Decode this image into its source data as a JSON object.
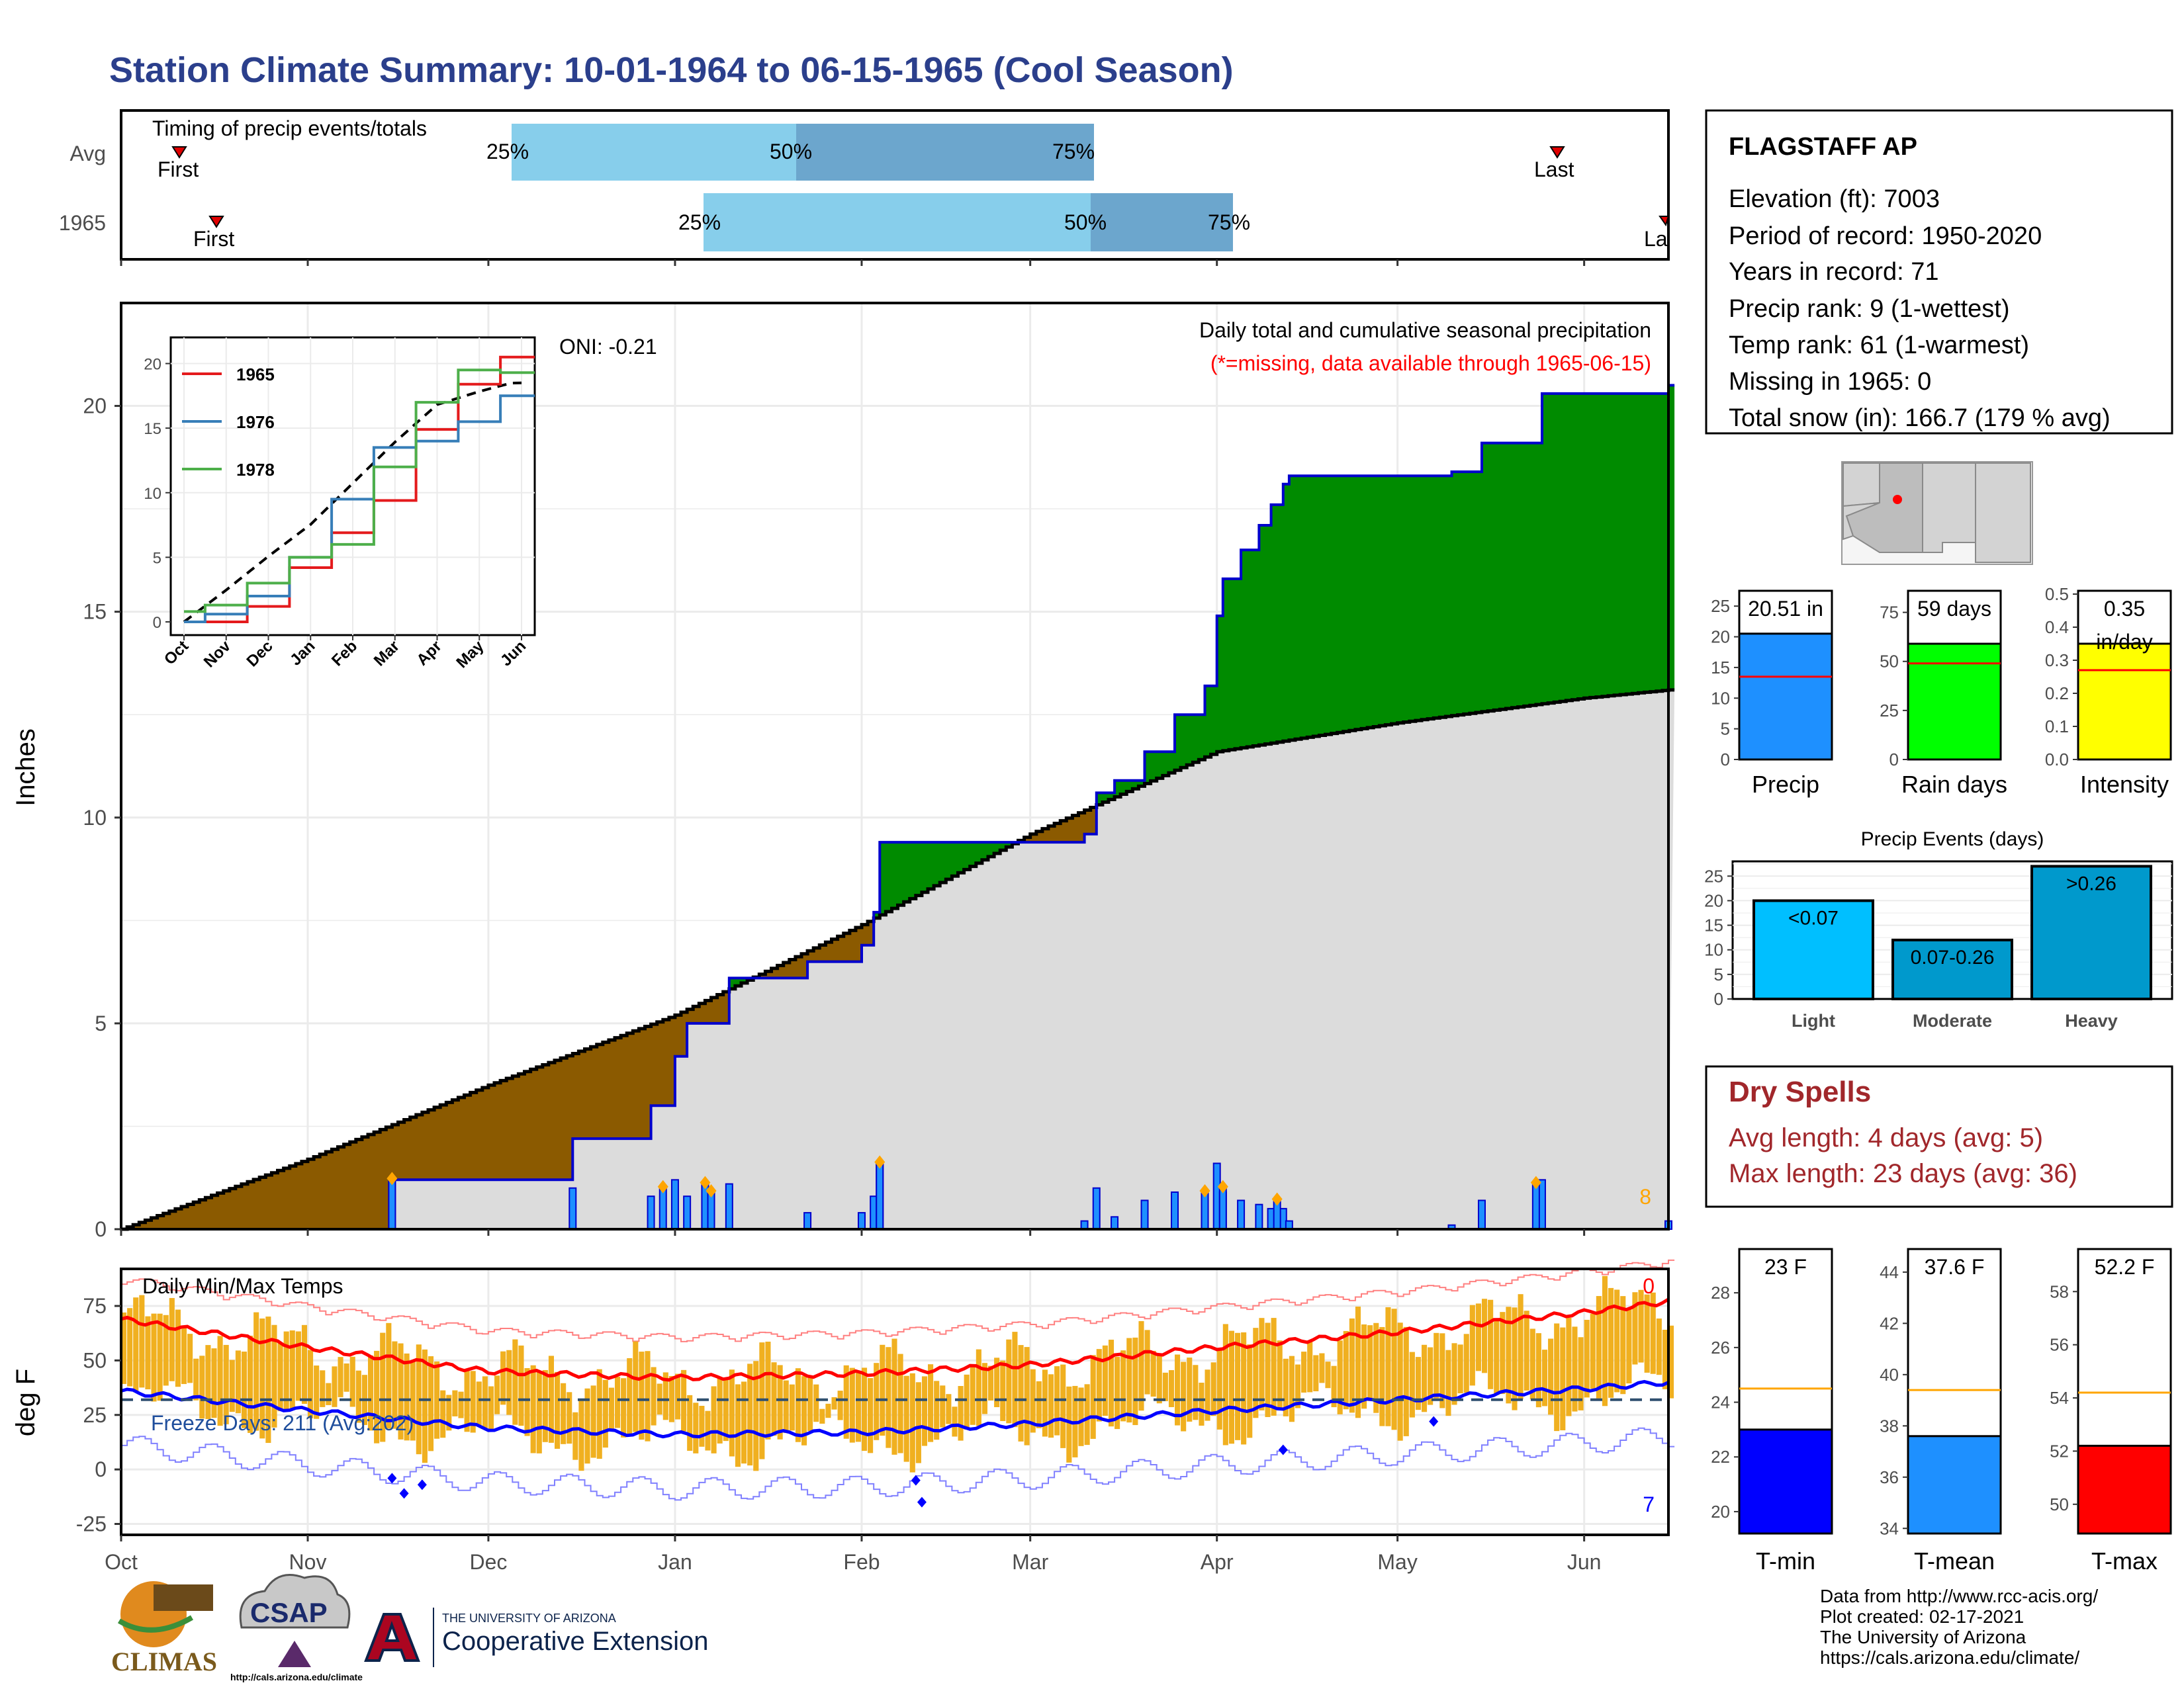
{
  "title": "Station Climate Summary: 10-01-1964 to 06-15-1965 (Cool Season)",
  "colors": {
    "title": "#2b3f8c",
    "quartile_light": "#87ceeb",
    "quartile_dark": "#6ca6cd",
    "wet": "#008b00",
    "dry": "#8b5a00",
    "normal": "#dcdcdc",
    "obs_line": "#0000cd",
    "precip_bar": "#1e90ff",
    "rain_bar": "#00ff00",
    "intensity_bar": "#ffff00",
    "avg_line": "#ff0000",
    "tmin": "#0000ff",
    "tmean": "#1e90ff",
    "tmax": "#ff0000",
    "temp_bar": "#f0b020",
    "dry_spell_text": "#a1272b"
  },
  "timing": {
    "label": "Timing of precip events/totals",
    "rows": [
      {
        "name": "Avg",
        "first_label": "First",
        "last_label": "Last",
        "q25": "25%",
        "q50": "50%",
        "q75": "75%"
      },
      {
        "name": "1965",
        "first_label": "First",
        "last_label": "La",
        "q25": "25%",
        "q50": "50%",
        "q75": "75%"
      }
    ]
  },
  "main": {
    "ylabel": "Inches",
    "oni": "ONI: -0.21",
    "subtitle": "Daily total and cumulative seasonal precipitation",
    "missing_note": "(*=missing, data available through 1965-06-15)",
    "count_label": "8",
    "y_ticks": [
      "0",
      "5",
      "10",
      "15",
      "20"
    ],
    "x_ticks": [
      "Oct",
      "Nov",
      "Dec",
      "Jan",
      "Feb",
      "Mar",
      "Apr",
      "May",
      "Jun"
    ]
  },
  "inset": {
    "y_ticks": [
      "0",
      "5",
      "10",
      "15",
      "20"
    ],
    "x_ticks": [
      "Oct",
      "Nov",
      "Dec",
      "Jan",
      "Feb",
      "Mar",
      "Apr",
      "May",
      "Jun"
    ],
    "legend": [
      "1965",
      "1976",
      "1978"
    ]
  },
  "temps": {
    "ylabel": "deg F",
    "label": "Daily Min/Max Temps",
    "freeze": "Freeze Days: 211 (Avg:202)",
    "top_count": "0",
    "bottom_count": "7",
    "y_ticks": [
      "75",
      "50",
      "25",
      "0",
      "-25"
    ]
  },
  "station": {
    "name": "FLAGSTAFF AP",
    "lines": [
      "Elevation (ft): 7003",
      "Period of record: 1950-2020",
      "Years in record: 71",
      "Precip rank: 9 (1-wettest)",
      "Temp rank: 61 (1-warmest)",
      "Missing in 1965: 0",
      "Total snow (in): 166.7 (179 % avg)"
    ]
  },
  "summary_bars": {
    "precip": {
      "label": "Precip",
      "value_label": "20.51 in",
      "y_ticks": [
        "25",
        "20",
        "15",
        "10",
        "5",
        "0"
      ]
    },
    "rain_days": {
      "label": "Rain days",
      "value_label": "59 days",
      "y_ticks": [
        "75",
        "50",
        "25",
        "0"
      ]
    },
    "intensity": {
      "label": "Intensity",
      "value_label": "0.35",
      "value_unit": "in/day",
      "y_ticks": [
        "0.5",
        "0.4",
        "0.3",
        "0.2",
        "0.1",
        "0.0"
      ]
    }
  },
  "events": {
    "title": "Precip Events (days)",
    "y_ticks": [
      "25",
      "20",
      "15",
      "10",
      "5",
      "0"
    ],
    "categories": [
      "Light",
      "Moderate",
      "Heavy"
    ],
    "bar_labels": [
      "<0.07",
      "0.07-0.26",
      ">0.26"
    ]
  },
  "dry_spells": {
    "title": "Dry Spells",
    "avg": "Avg length: 4 days (avg: 5)",
    "max": "Max length: 23 days (avg: 36)"
  },
  "temp_bars": {
    "tmin": {
      "label": "T-min",
      "value_label": "23 F",
      "y_ticks": [
        "28",
        "26",
        "24",
        "22",
        "20"
      ]
    },
    "tmean": {
      "label": "T-mean",
      "value_label": "37.6 F",
      "y_ticks": [
        "44",
        "42",
        "40",
        "38",
        "36",
        "34"
      ]
    },
    "tmax": {
      "label": "T-max",
      "value_label": "52.2 F",
      "y_ticks": [
        "58",
        "56",
        "54",
        "52",
        "50"
      ]
    }
  },
  "credits": [
    "Data from http://www.rcc-acis.org/",
    "Plot created: 02-17-2021",
    "The University of Arizona",
    "https://cals.arizona.edu/climate/"
  ],
  "logos": {
    "climas": "CLIMAS",
    "csap": "CSAP",
    "csap_url": "http://cals.arizona.edu/climate",
    "ua_line1": "THE UNIVERSITY OF ARIZONA",
    "ua_line2": "Cooperative Extension"
  },
  "chart_data": [
    {
      "type": "area",
      "title": "Daily total and cumulative seasonal precipitation",
      "ylabel": "Inches",
      "ylim": [
        0,
        22.5
      ],
      "x_range": [
        "1964-10-01",
        "1965-06-15"
      ],
      "series": [
        {
          "name": "observed cumulative",
          "x": [
            "1964-10-01",
            "1964-11-14",
            "1964-11-15",
            "1964-12-10",
            "1964-12-15",
            "1964-12-28",
            "1965-01-01",
            "1965-01-03",
            "1965-01-10",
            "1965-01-20",
            "1965-01-23",
            "1965-02-01",
            "1965-02-03",
            "1965-02-04",
            "1965-03-01",
            "1965-03-10",
            "1965-03-12",
            "1965-03-15",
            "1965-03-20",
            "1965-03-25",
            "1965-03-30",
            "1965-04-01",
            "1965-04-02",
            "1965-04-05",
            "1965-04-08",
            "1965-04-10",
            "1965-04-12",
            "1965-04-13",
            "1965-04-15",
            "1965-05-10",
            "1965-05-15",
            "1965-05-25",
            "1965-06-15"
          ],
          "y": [
            0,
            0,
            1.2,
            1.2,
            2.2,
            3.0,
            4.2,
            5.0,
            6.1,
            6.1,
            6.5,
            6.9,
            7.7,
            9.4,
            9.4,
            9.6,
            10.6,
            10.9,
            11.6,
            12.5,
            13.2,
            14.9,
            15.8,
            16.5,
            17.1,
            17.6,
            18.1,
            18.3,
            18.3,
            18.4,
            19.1,
            20.3,
            20.5
          ]
        },
        {
          "name": "average cumulative",
          "x": [
            "1964-10-01",
            "1964-11-01",
            "1964-12-01",
            "1965-01-01",
            "1965-02-01",
            "1965-03-01",
            "1965-04-01",
            "1965-05-01",
            "1965-06-01",
            "1965-06-15"
          ],
          "y": [
            0,
            1.7,
            3.5,
            5.2,
            7.4,
            9.6,
            11.6,
            12.3,
            12.9,
            13.1
          ]
        }
      ],
      "daily_events": [
        {
          "x": "1964-11-15",
          "y": 1.2
        },
        {
          "x": "1964-12-30",
          "y": 1.0
        },
        {
          "x": "1965-01-06",
          "y": 1.1
        },
        {
          "x": "1965-01-07",
          "y": 0.9
        },
        {
          "x": "1965-02-04",
          "y": 1.6
        },
        {
          "x": "1965-03-30",
          "y": 0.9
        },
        {
          "x": "1965-04-02",
          "y": 1.0
        },
        {
          "x": "1965-04-11",
          "y": 0.7
        },
        {
          "x": "1965-05-24",
          "y": 1.1
        }
      ]
    },
    {
      "type": "line",
      "title": "",
      "ylim": [
        0,
        21
      ],
      "x_ticks": [
        "Oct",
        "Nov",
        "Dec",
        "Jan",
        "Feb",
        "Mar",
        "Apr",
        "May",
        "Jun"
      ],
      "series": [
        {
          "name": "1965",
          "values": [
            0,
            0,
            1.2,
            4.2,
            6.9,
            9.4,
            14.9,
            18.4,
            20.5
          ]
        },
        {
          "name": "1976",
          "values": [
            0,
            0.6,
            2.0,
            5.0,
            9.5,
            13.5,
            14.0,
            15.5,
            17.5
          ]
        },
        {
          "name": "1978",
          "values": [
            0.8,
            1.3,
            3.0,
            5.0,
            6.0,
            12.0,
            17.0,
            19.5,
            19.3
          ]
        }
      ]
    },
    {
      "type": "bar",
      "title": "Daily Min/Max Temps",
      "ylabel": "deg F",
      "ylim": [
        -30,
        92
      ],
      "x_ticks": [
        "Oct",
        "Nov",
        "Dec",
        "Jan",
        "Feb",
        "Mar",
        "Apr",
        "May",
        "Jun"
      ],
      "series": [
        {
          "name": "avg max",
          "x": [
            "1964-10-01",
            "1964-11-01",
            "1964-12-01",
            "1965-01-01",
            "1965-02-01",
            "1965-03-01",
            "1965-04-01",
            "1965-05-01",
            "1965-06-01",
            "1965-06-15"
          ],
          "y": [
            69,
            56,
            45,
            42,
            44,
            48,
            56,
            63,
            72,
            77
          ]
        },
        {
          "name": "avg min",
          "x": [
            "1964-10-01",
            "1964-11-01",
            "1964-12-01",
            "1965-01-01",
            "1965-02-01",
            "1965-03-01",
            "1965-04-01",
            "1965-05-01",
            "1965-06-01",
            "1965-06-15"
          ],
          "y": [
            36,
            27,
            19,
            16,
            17,
            21,
            27,
            32,
            37,
            40
          ]
        },
        {
          "name": "freeze line",
          "x": [
            "1964-10-01",
            "1965-06-15"
          ],
          "y": [
            32,
            32
          ]
        }
      ]
    },
    {
      "type": "bar",
      "categories": [
        "Precip",
        "Rain days",
        "Intensity"
      ],
      "series": [
        {
          "name": "1965",
          "values": [
            20.51,
            59,
            0.35
          ]
        },
        {
          "name": "avg",
          "values": [
            13.5,
            49,
            0.27
          ]
        }
      ]
    },
    {
      "type": "bar",
      "title": "Precip Events (days)",
      "categories": [
        "Light",
        "Moderate",
        "Heavy"
      ],
      "values": [
        20,
        12,
        27
      ]
    },
    {
      "type": "bar",
      "categories": [
        "T-min",
        "T-mean",
        "T-max"
      ],
      "series": [
        {
          "name": "1965",
          "values": [
            23,
            37.6,
            52.2
          ]
        },
        {
          "name": "avg",
          "values": [
            24.5,
            39.4,
            54.2
          ]
        }
      ]
    }
  ]
}
